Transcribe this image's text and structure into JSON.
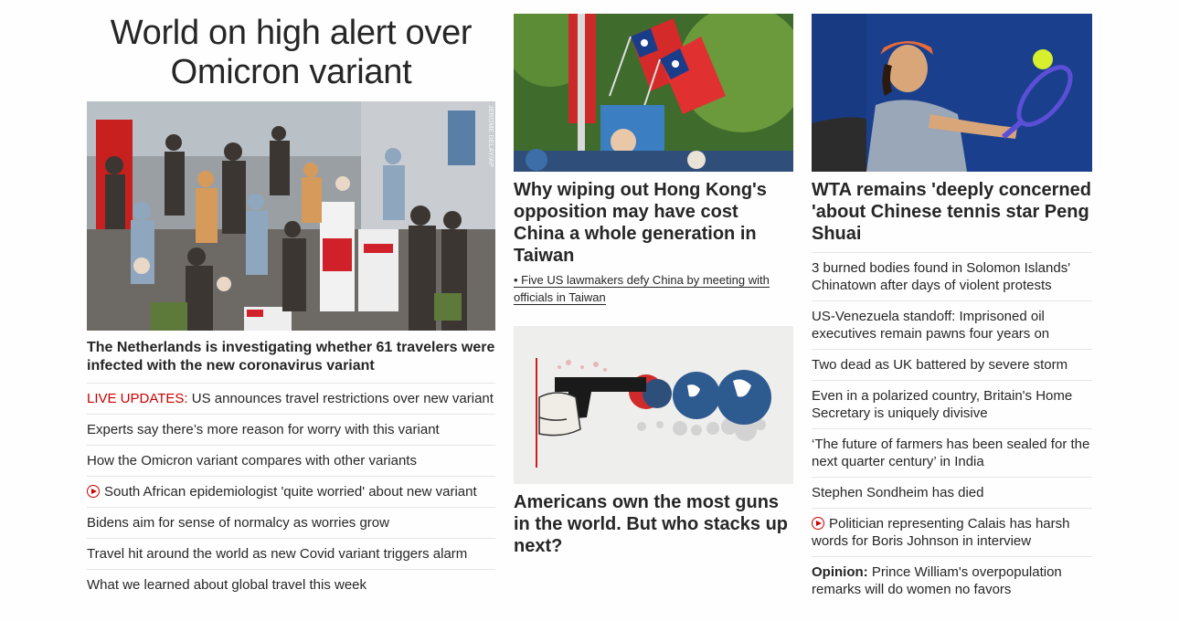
{
  "left": {
    "title": "World on high alert over Omicron variant",
    "hero_credit": "JEROME DELAY/AP",
    "lead": "The Netherlands is investigating whether 61 travelers were infected with the new coronavirus variant",
    "items": [
      {
        "prefix": "LIVE UPDATES:",
        "text": " US announces travel restrictions over new variant"
      },
      {
        "text": "Experts say there’s more reason for worry with this variant"
      },
      {
        "text": "How the Omicron variant compares with other variants"
      },
      {
        "video": true,
        "text": "South African epidemiologist 'quite worried' about new variant"
      },
      {
        "text": "Bidens aim for sense of normalcy as worries grow"
      },
      {
        "text": "Travel hit around the world as new Covid variant triggers alarm"
      },
      {
        "text": "What we learned about global travel this week"
      }
    ]
  },
  "middle": {
    "story1": {
      "headline": "Why wiping out Hong Kong's opposition may have cost China a whole generation in Taiwan",
      "bullet": "• Five US lawmakers defy China by meeting with officials in Taiwan"
    },
    "story2": {
      "headline": "Americans own the most guns in the world. But who stacks up next?"
    }
  },
  "right": {
    "headline": "WTA remains 'deeply concerned 'about Chinese tennis star Peng Shuai",
    "items": [
      {
        "text": "3 burned bodies found in Solomon Islands' Chinatown after days of violent protests"
      },
      {
        "text": "US-Venezuela standoff: Imprisoned oil executives remain pawns four years on"
      },
      {
        "text": "Two dead as UK battered by severe storm"
      },
      {
        "text": "Even in a polarized country, Britain's Home Secretary is uniquely divisive"
      },
      {
        "text": "‘The future of farmers has been sealed for the next quarter century’ in India"
      },
      {
        "text": "Stephen Sondheim has died"
      },
      {
        "video": true,
        "text": "Politician representing Calais has harsh words for Boris Johnson in interview"
      },
      {
        "prefix": "Opinion:",
        "text": " Prince William's overpopulation remarks will do women no favors"
      }
    ]
  },
  "colors": {
    "live": "#cc0000",
    "text": "#262626",
    "divider": "#e6e6e6"
  }
}
